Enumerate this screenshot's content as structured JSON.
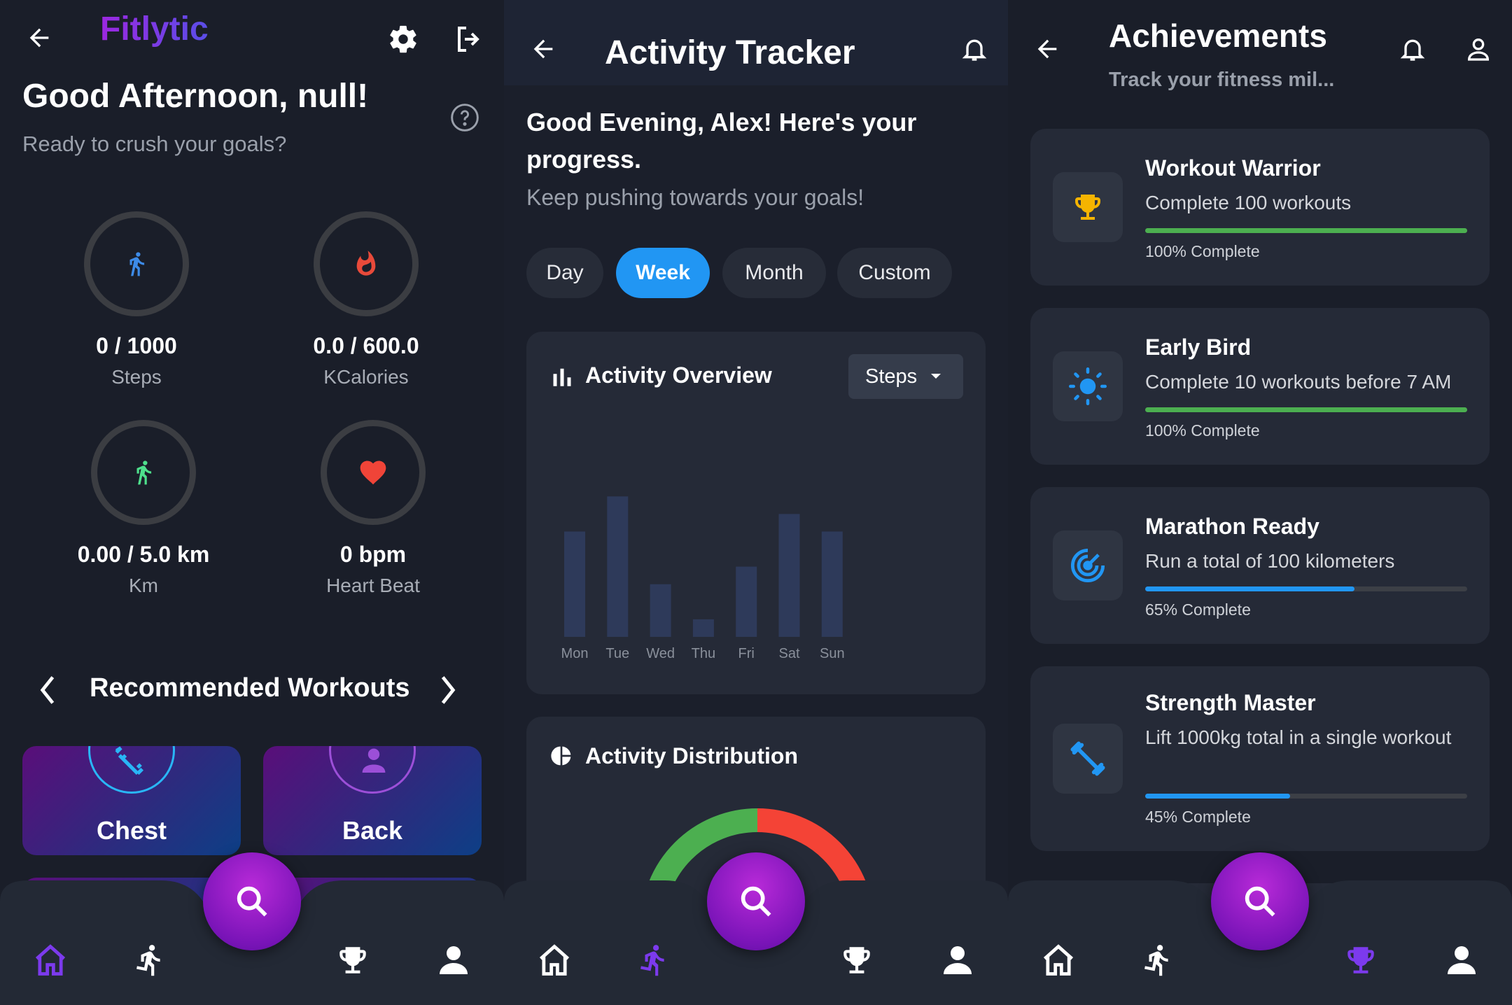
{
  "screen1": {
    "brand": "Fitlytic",
    "greeting": "Good Afternoon, null!",
    "subtitle": "Ready to crush your goals?",
    "metrics": [
      {
        "value": "0 / 1000",
        "label": "Steps",
        "icon": "walk-icon",
        "color": "#3d8be8"
      },
      {
        "value": "0.0 / 600.0",
        "label": "KCalories",
        "icon": "flame-icon",
        "color": "#e84a3a"
      },
      {
        "value": "0.00 / 5.0 km",
        "label": "Km",
        "icon": "walk-icon",
        "color": "#4ee08c"
      },
      {
        "value": "0 bpm",
        "label": "Heart Beat",
        "icon": "heart-icon",
        "color": "#f04438"
      }
    ],
    "section_title": "Recommended Workouts",
    "workouts": [
      {
        "label": "Chest",
        "ring_color": "#29b6f6"
      },
      {
        "label": "Back",
        "ring_color": "#9c4fd8"
      }
    ],
    "nav_active": "home"
  },
  "screen2": {
    "title": "Activity Tracker",
    "greeting": "Good Evening, Alex! Here's your progress.",
    "subtitle": "Keep pushing towards your goals!",
    "periods": [
      "Day",
      "Week",
      "Month",
      "Custom"
    ],
    "active_period": "Week",
    "overview_title": "Activity Overview",
    "metric_select": "Steps",
    "distribution_title": "Activity Distribution",
    "chart_data": {
      "type": "bar",
      "categories": [
        "Mon",
        "Tue",
        "Wed",
        "Thu",
        "Fri",
        "Sat",
        "Sun"
      ],
      "values": [
        60,
        80,
        30,
        10,
        40,
        70,
        60
      ],
      "ylim": [
        0,
        100
      ]
    },
    "distribution_colors": [
      "#4caf50",
      "#f44336"
    ],
    "nav_active": "activity"
  },
  "screen3": {
    "title": "Achievements",
    "subtitle": "Track your fitness mil...",
    "achievements": [
      {
        "title": "Workout Warrior",
        "desc": "Complete 100 workouts",
        "progress": 100,
        "pct_label": "100% Complete",
        "icon": "trophy-icon",
        "color": "#4caf50",
        "icon_color": "#f5b400"
      },
      {
        "title": "Early Bird",
        "desc": "Complete 10 workouts before 7 AM",
        "progress": 100,
        "pct_label": "100% Complete",
        "icon": "sun-icon",
        "color": "#4caf50",
        "icon_color": "#2196f3"
      },
      {
        "title": "Marathon Ready",
        "desc": "Run a total of 100 kilometers",
        "progress": 65,
        "pct_label": "65% Complete",
        "icon": "target-icon",
        "color": "#2196f3",
        "icon_color": "#2196f3"
      },
      {
        "title": "Strength Master",
        "desc": "Lift 1000kg total in a single workout",
        "progress": 45,
        "pct_label": "45% Complete",
        "icon": "dumbbell-icon",
        "color": "#2196f3",
        "icon_color": "#2196f3"
      }
    ],
    "nav_active": "achievements"
  },
  "colors": {
    "accent": "#2196f3",
    "nav_active": "#7c3aed",
    "nav_inactive": "#ffffff"
  }
}
